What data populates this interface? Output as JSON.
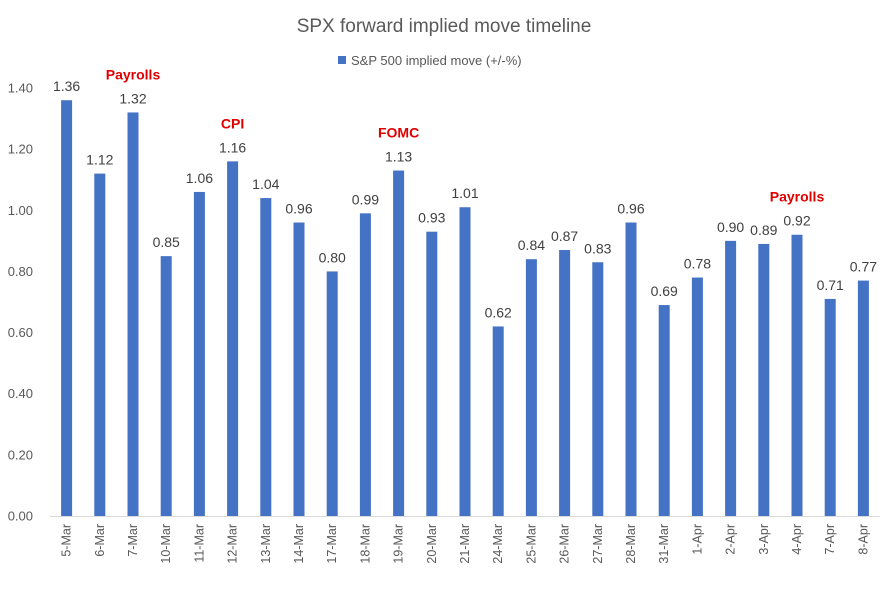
{
  "chart_data": {
    "type": "bar",
    "title": "SPX forward implied move timeline",
    "xlabel": "",
    "ylabel": "",
    "ylim": [
      0,
      1.4
    ],
    "y_ticks": [
      "0.00",
      "0.20",
      "0.40",
      "0.60",
      "0.80",
      "1.00",
      "1.20",
      "1.40"
    ],
    "grid": false,
    "legend_position": "top-center",
    "series": [
      {
        "name": "S&P 500 implied move (+/-%)",
        "color": "#4472c4",
        "values": [
          1.36,
          1.12,
          1.32,
          0.85,
          1.06,
          1.16,
          1.04,
          0.96,
          0.8,
          0.99,
          1.13,
          0.93,
          1.01,
          0.62,
          0.84,
          0.87,
          0.83,
          0.96,
          0.69,
          0.78,
          0.9,
          0.89,
          0.92,
          0.71,
          0.77
        ],
        "labels": [
          "1.36",
          "1.12",
          "1.32",
          "0.85",
          "1.06",
          "1.16",
          "1.04",
          "0.96",
          "0.80",
          "0.99",
          "1.13",
          "0.93",
          "1.01",
          "0.62",
          "0.84",
          "0.87",
          "0.83",
          "0.96",
          "0.69",
          "0.78",
          "0.90",
          "0.89",
          "0.92",
          "0.71",
          "0.77"
        ]
      }
    ],
    "categories": [
      "5-Mar",
      "6-Mar",
      "7-Mar",
      "10-Mar",
      "11-Mar",
      "12-Mar",
      "13-Mar",
      "14-Mar",
      "17-Mar",
      "18-Mar",
      "19-Mar",
      "20-Mar",
      "21-Mar",
      "24-Mar",
      "25-Mar",
      "26-Mar",
      "27-Mar",
      "28-Mar",
      "31-Mar",
      "1-Apr",
      "2-Apr",
      "3-Apr",
      "4-Apr",
      "7-Apr",
      "8-Apr"
    ],
    "annotations": [
      {
        "text": "Payrolls",
        "category": "7-Mar",
        "color": "#e00000"
      },
      {
        "text": "CPI",
        "category": "12-Mar",
        "color": "#e00000"
      },
      {
        "text": "FOMC",
        "category": "19-Mar",
        "color": "#e00000"
      },
      {
        "text": "Payrolls",
        "category": "4-Apr",
        "color": "#e00000"
      }
    ]
  }
}
